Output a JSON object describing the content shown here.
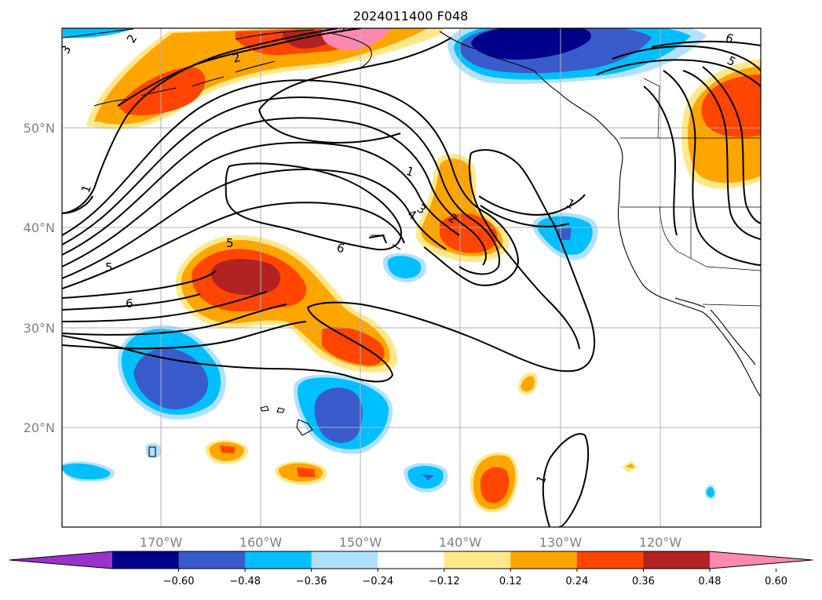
{
  "title": "2024011400 F048",
  "lat_ticks": [
    "50°N",
    "40°N",
    "30°N",
    "20°N"
  ],
  "lon_ticks": [
    "170°W",
    "160°W",
    "150°W",
    "140°W",
    "130°W",
    "120°W"
  ],
  "colorbar": {
    "levels": [
      "−0.60",
      "−0.48",
      "−0.36",
      "−0.24",
      "−0.12",
      "0.12",
      "0.24",
      "0.36",
      "0.48",
      "0.60"
    ],
    "colors": [
      "#9932cc",
      "#00008b",
      "#3a5bcc",
      "#00bfff",
      "#b0e2ff",
      "#ffffff",
      "#ffe88a",
      "#ffa500",
      "#ff4500",
      "#b22222",
      "#ff88b0"
    ]
  },
  "contour_labels": [
    "1",
    "2",
    "3",
    "4",
    "5",
    "6"
  ],
  "map": {
    "extent": {
      "lon": [
        "180°W",
        "110°W"
      ],
      "lat": [
        "10°N",
        "60°N"
      ]
    },
    "grid": true,
    "coastlines": true,
    "political_borders": true
  }
}
